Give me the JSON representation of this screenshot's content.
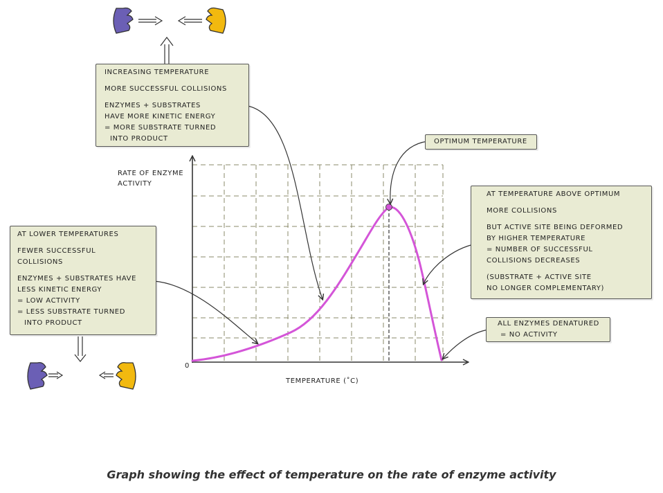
{
  "notes": {
    "increasing": {
      "title": "INCREASING TEMPERATURE",
      "lines": [
        "MORE SUCCESSFUL COLLISIONS",
        "ENZYMES + SUBSTRATES",
        "HAVE MORE KINETIC ENERGY",
        "= MORE SUBSTRATE TURNED",
        "INTO PRODUCT"
      ]
    },
    "lower": {
      "title": "AT LOWER TEMPERATURES",
      "lines": [
        "FEWER SUCCESSFUL",
        "COLLISIONS",
        "ENZYMES + SUBSTRATES HAVE",
        "LESS KINETIC ENERGY",
        "= LOW ACTIVITY",
        "= LESS SUBSTRATE TURNED",
        "INTO PRODUCT"
      ]
    },
    "optimum": {
      "title": "OPTIMUM TEMPERATURE"
    },
    "above": {
      "title": "AT TEMPERATURE ABOVE OPTIMUM",
      "lines": [
        "MORE COLLISIONS",
        "BUT ACTIVE SITE BEING DEFORMED",
        "BY HIGHER TEMPERATURE",
        "= NUMBER OF SUCCESSFUL",
        "COLLISIONS DECREASES",
        "(SUBSTRATE + ACTIVE SITE",
        "NO LONGER COMPLEMENTARY)"
      ]
    },
    "denatured": {
      "lines": [
        "ALL ENZYMES DENATURED",
        "= NO ACTIVITY"
      ]
    }
  },
  "axes": {
    "y_label_1": "RATE OF ENZYME",
    "y_label_2": "ACTIVITY",
    "x_label": "TEMPERATURE (˚C)",
    "origin": "0"
  },
  "caption": "Graph showing the effect of temperature on the rate of enzyme activity",
  "colors": {
    "curve": "#d455d8",
    "enzyme": "#6b5fb5",
    "substrate": "#f2b90f",
    "note_bg": "#e9ebd3",
    "grid": "#8a8a6a"
  },
  "chart_data": {
    "type": "line",
    "description_points": [
      {
        "t": 0,
        "rate": 0
      },
      {
        "t": 0.5,
        "rate": 0.16
      },
      {
        "t": 0.8,
        "rate": 0.55
      },
      {
        "t": 1.0,
        "rate": 0.88
      },
      {
        "t": 1.28,
        "rate": 0
      }
    ]
  }
}
